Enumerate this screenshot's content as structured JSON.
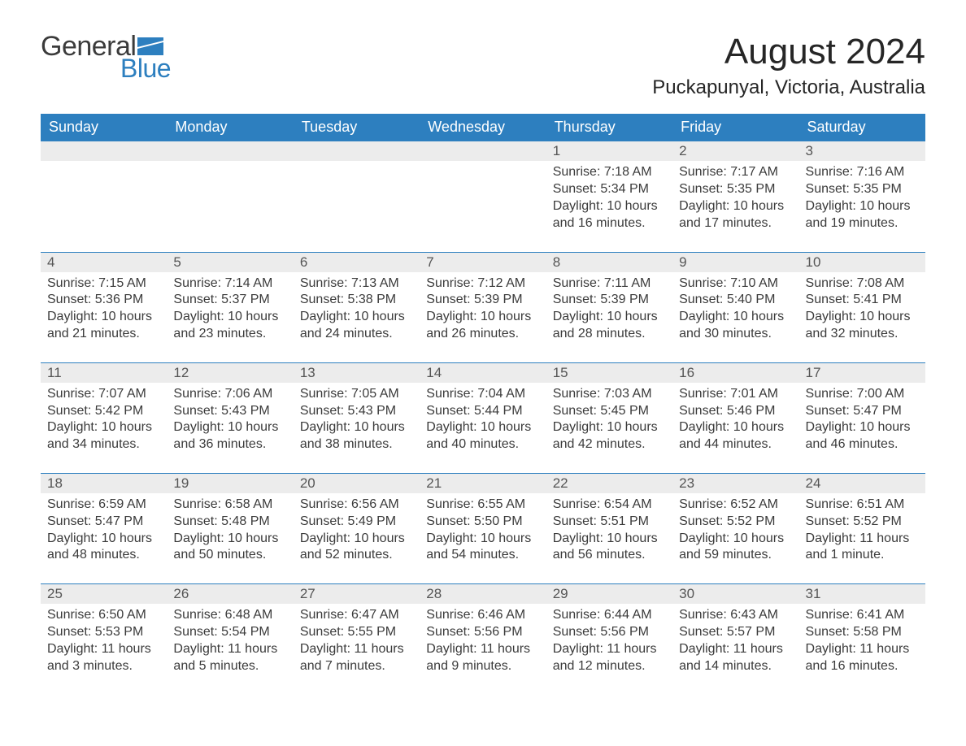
{
  "logo": {
    "word1": "General",
    "word2": "Blue",
    "flag_color": "#2d7fbf"
  },
  "header": {
    "month_title": "August 2024",
    "location": "Puckapunyal, Victoria, Australia"
  },
  "colors": {
    "header_bg": "#2d7fbf",
    "header_text": "#ffffff",
    "daynum_bg": "#ececec",
    "body_text": "#3b3b3b",
    "page_bg": "#ffffff"
  },
  "typography": {
    "month_title_fontsize": 44,
    "location_fontsize": 24,
    "weekday_fontsize": 18,
    "daynum_fontsize": 17,
    "body_fontsize": 16
  },
  "calendar": {
    "type": "table",
    "weekdays": [
      "Sunday",
      "Monday",
      "Tuesday",
      "Wednesday",
      "Thursday",
      "Friday",
      "Saturday"
    ],
    "weeks": [
      [
        null,
        null,
        null,
        null,
        {
          "n": "1",
          "sunrise": "7:18 AM",
          "sunset": "5:34 PM",
          "daylight": "10 hours and 16 minutes."
        },
        {
          "n": "2",
          "sunrise": "7:17 AM",
          "sunset": "5:35 PM",
          "daylight": "10 hours and 17 minutes."
        },
        {
          "n": "3",
          "sunrise": "7:16 AM",
          "sunset": "5:35 PM",
          "daylight": "10 hours and 19 minutes."
        }
      ],
      [
        {
          "n": "4",
          "sunrise": "7:15 AM",
          "sunset": "5:36 PM",
          "daylight": "10 hours and 21 minutes."
        },
        {
          "n": "5",
          "sunrise": "7:14 AM",
          "sunset": "5:37 PM",
          "daylight": "10 hours and 23 minutes."
        },
        {
          "n": "6",
          "sunrise": "7:13 AM",
          "sunset": "5:38 PM",
          "daylight": "10 hours and 24 minutes."
        },
        {
          "n": "7",
          "sunrise": "7:12 AM",
          "sunset": "5:39 PM",
          "daylight": "10 hours and 26 minutes."
        },
        {
          "n": "8",
          "sunrise": "7:11 AM",
          "sunset": "5:39 PM",
          "daylight": "10 hours and 28 minutes."
        },
        {
          "n": "9",
          "sunrise": "7:10 AM",
          "sunset": "5:40 PM",
          "daylight": "10 hours and 30 minutes."
        },
        {
          "n": "10",
          "sunrise": "7:08 AM",
          "sunset": "5:41 PM",
          "daylight": "10 hours and 32 minutes."
        }
      ],
      [
        {
          "n": "11",
          "sunrise": "7:07 AM",
          "sunset": "5:42 PM",
          "daylight": "10 hours and 34 minutes."
        },
        {
          "n": "12",
          "sunrise": "7:06 AM",
          "sunset": "5:43 PM",
          "daylight": "10 hours and 36 minutes."
        },
        {
          "n": "13",
          "sunrise": "7:05 AM",
          "sunset": "5:43 PM",
          "daylight": "10 hours and 38 minutes."
        },
        {
          "n": "14",
          "sunrise": "7:04 AM",
          "sunset": "5:44 PM",
          "daylight": "10 hours and 40 minutes."
        },
        {
          "n": "15",
          "sunrise": "7:03 AM",
          "sunset": "5:45 PM",
          "daylight": "10 hours and 42 minutes."
        },
        {
          "n": "16",
          "sunrise": "7:01 AM",
          "sunset": "5:46 PM",
          "daylight": "10 hours and 44 minutes."
        },
        {
          "n": "17",
          "sunrise": "7:00 AM",
          "sunset": "5:47 PM",
          "daylight": "10 hours and 46 minutes."
        }
      ],
      [
        {
          "n": "18",
          "sunrise": "6:59 AM",
          "sunset": "5:47 PM",
          "daylight": "10 hours and 48 minutes."
        },
        {
          "n": "19",
          "sunrise": "6:58 AM",
          "sunset": "5:48 PM",
          "daylight": "10 hours and 50 minutes."
        },
        {
          "n": "20",
          "sunrise": "6:56 AM",
          "sunset": "5:49 PM",
          "daylight": "10 hours and 52 minutes."
        },
        {
          "n": "21",
          "sunrise": "6:55 AM",
          "sunset": "5:50 PM",
          "daylight": "10 hours and 54 minutes."
        },
        {
          "n": "22",
          "sunrise": "6:54 AM",
          "sunset": "5:51 PM",
          "daylight": "10 hours and 56 minutes."
        },
        {
          "n": "23",
          "sunrise": "6:52 AM",
          "sunset": "5:52 PM",
          "daylight": "10 hours and 59 minutes."
        },
        {
          "n": "24",
          "sunrise": "6:51 AM",
          "sunset": "5:52 PM",
          "daylight": "11 hours and 1 minute."
        }
      ],
      [
        {
          "n": "25",
          "sunrise": "6:50 AM",
          "sunset": "5:53 PM",
          "daylight": "11 hours and 3 minutes."
        },
        {
          "n": "26",
          "sunrise": "6:48 AM",
          "sunset": "5:54 PM",
          "daylight": "11 hours and 5 minutes."
        },
        {
          "n": "27",
          "sunrise": "6:47 AM",
          "sunset": "5:55 PM",
          "daylight": "11 hours and 7 minutes."
        },
        {
          "n": "28",
          "sunrise": "6:46 AM",
          "sunset": "5:56 PM",
          "daylight": "11 hours and 9 minutes."
        },
        {
          "n": "29",
          "sunrise": "6:44 AM",
          "sunset": "5:56 PM",
          "daylight": "11 hours and 12 minutes."
        },
        {
          "n": "30",
          "sunrise": "6:43 AM",
          "sunset": "5:57 PM",
          "daylight": "11 hours and 14 minutes."
        },
        {
          "n": "31",
          "sunrise": "6:41 AM",
          "sunset": "5:58 PM",
          "daylight": "11 hours and 16 minutes."
        }
      ]
    ],
    "labels": {
      "sunrise": "Sunrise: ",
      "sunset": "Sunset: ",
      "daylight": "Daylight: "
    }
  }
}
